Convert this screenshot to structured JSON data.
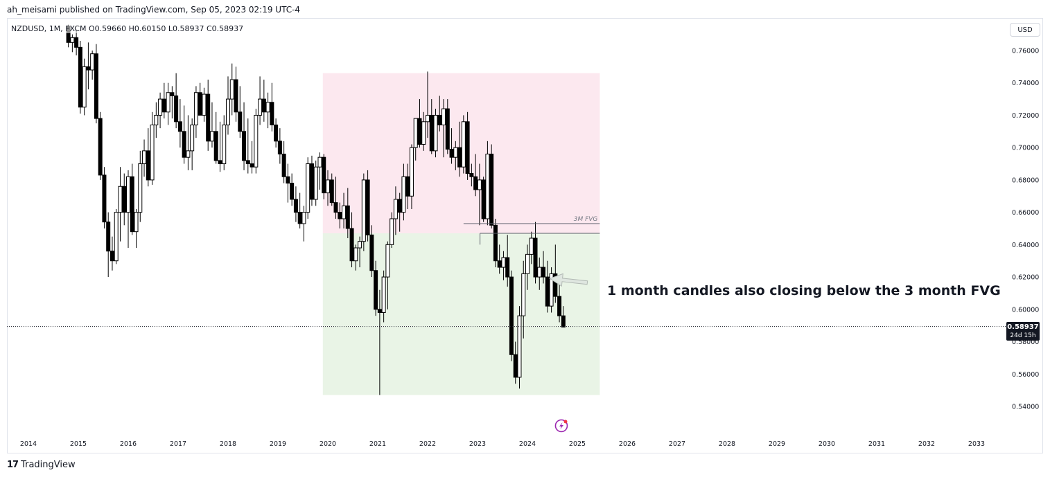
{
  "header": {
    "published_line": "ah_meisami published on TradingView.com, Sep 05, 2023 02:19 UTC-4"
  },
  "legend": {
    "text": "NZDUSD, 1M, FXCM  O0.59660  H0.60150  L0.58937  C0.58937"
  },
  "currency_button": "USD",
  "last_price": {
    "price": "0.58937",
    "countdown": "24d 15h"
  },
  "annotation": {
    "text": "1 month candles also closing below the 3 month FVG"
  },
  "footer": {
    "brand": "TradingView",
    "mark": "17"
  },
  "colors": {
    "bull_body": "#ffffff",
    "bear_body": "#000000",
    "wick": "#000000",
    "premium_zone": "#fce8ef",
    "discount_zone": "#e9f4e6",
    "arrow": "#b2b9b4"
  },
  "chart_data": {
    "type": "candlestick",
    "symbol": "NZDUSD",
    "timeframe": "1M",
    "ylim": [
      0.532,
      0.772
    ],
    "xlim": [
      2013.6,
      2033.9
    ],
    "y_ticks": [
      "0.54000",
      "0.56000",
      "0.58000",
      "0.60000",
      "0.62000",
      "0.64000",
      "0.66000",
      "0.68000",
      "0.70000",
      "0.72000",
      "0.74000",
      "0.76000"
    ],
    "x_ticks": [
      "2014",
      "2015",
      "2016",
      "2017",
      "2018",
      "2019",
      "2020",
      "2021",
      "2022",
      "2023",
      "2024",
      "2025",
      "2026",
      "2027",
      "2028",
      "2029",
      "2030",
      "2031",
      "2032",
      "2033"
    ],
    "candles": [
      {
        "t": 2014.8,
        "o": 0.775,
        "h": 0.776,
        "l": 0.762,
        "c": 0.765
      },
      {
        "t": 2014.88,
        "o": 0.765,
        "h": 0.77,
        "l": 0.759,
        "c": 0.768
      },
      {
        "t": 2014.96,
        "o": 0.768,
        "h": 0.773,
        "l": 0.757,
        "c": 0.762
      },
      {
        "t": 2015.04,
        "o": 0.762,
        "h": 0.766,
        "l": 0.721,
        "c": 0.725
      },
      {
        "t": 2015.12,
        "o": 0.725,
        "h": 0.755,
        "l": 0.72,
        "c": 0.75
      },
      {
        "t": 2015.2,
        "o": 0.75,
        "h": 0.765,
        "l": 0.736,
        "c": 0.748
      },
      {
        "t": 2015.28,
        "o": 0.748,
        "h": 0.76,
        "l": 0.742,
        "c": 0.758
      },
      {
        "t": 2015.36,
        "o": 0.758,
        "h": 0.764,
        "l": 0.715,
        "c": 0.718
      },
      {
        "t": 2015.44,
        "o": 0.718,
        "h": 0.722,
        "l": 0.68,
        "c": 0.683
      },
      {
        "t": 2015.52,
        "o": 0.683,
        "h": 0.688,
        "l": 0.65,
        "c": 0.654
      },
      {
        "t": 2015.6,
        "o": 0.654,
        "h": 0.66,
        "l": 0.62,
        "c": 0.636
      },
      {
        "t": 2015.68,
        "o": 0.636,
        "h": 0.645,
        "l": 0.624,
        "c": 0.63
      },
      {
        "t": 2015.76,
        "o": 0.63,
        "h": 0.662,
        "l": 0.628,
        "c": 0.66
      },
      {
        "t": 2015.84,
        "o": 0.66,
        "h": 0.688,
        "l": 0.642,
        "c": 0.676
      },
      {
        "t": 2015.92,
        "o": 0.676,
        "h": 0.684,
        "l": 0.652,
        "c": 0.66
      },
      {
        "t": 2016.0,
        "o": 0.66,
        "h": 0.686,
        "l": 0.638,
        "c": 0.682
      },
      {
        "t": 2016.08,
        "o": 0.682,
        "h": 0.69,
        "l": 0.646,
        "c": 0.648
      },
      {
        "t": 2016.16,
        "o": 0.648,
        "h": 0.662,
        "l": 0.638,
        "c": 0.66
      },
      {
        "t": 2016.24,
        "o": 0.66,
        "h": 0.698,
        "l": 0.654,
        "c": 0.69
      },
      {
        "t": 2016.32,
        "o": 0.69,
        "h": 0.705,
        "l": 0.682,
        "c": 0.698
      },
      {
        "t": 2016.4,
        "o": 0.698,
        "h": 0.712,
        "l": 0.676,
        "c": 0.68
      },
      {
        "t": 2016.48,
        "o": 0.68,
        "h": 0.722,
        "l": 0.677,
        "c": 0.714
      },
      {
        "t": 2016.56,
        "o": 0.714,
        "h": 0.728,
        "l": 0.706,
        "c": 0.72
      },
      {
        "t": 2016.64,
        "o": 0.72,
        "h": 0.734,
        "l": 0.712,
        "c": 0.73
      },
      {
        "t": 2016.72,
        "o": 0.73,
        "h": 0.74,
        "l": 0.718,
        "c": 0.722
      },
      {
        "t": 2016.8,
        "o": 0.722,
        "h": 0.74,
        "l": 0.714,
        "c": 0.734
      },
      {
        "t": 2016.88,
        "o": 0.734,
        "h": 0.738,
        "l": 0.718,
        "c": 0.732
      },
      {
        "t": 2016.96,
        "o": 0.732,
        "h": 0.746,
        "l": 0.712,
        "c": 0.716
      },
      {
        "t": 2017.04,
        "o": 0.716,
        "h": 0.73,
        "l": 0.7,
        "c": 0.71
      },
      {
        "t": 2017.12,
        "o": 0.71,
        "h": 0.726,
        "l": 0.69,
        "c": 0.694
      },
      {
        "t": 2017.2,
        "o": 0.694,
        "h": 0.72,
        "l": 0.686,
        "c": 0.698
      },
      {
        "t": 2017.28,
        "o": 0.698,
        "h": 0.718,
        "l": 0.686,
        "c": 0.714
      },
      {
        "t": 2017.36,
        "o": 0.714,
        "h": 0.738,
        "l": 0.706,
        "c": 0.734
      },
      {
        "t": 2017.44,
        "o": 0.734,
        "h": 0.74,
        "l": 0.72,
        "c": 0.72
      },
      {
        "t": 2017.52,
        "o": 0.72,
        "h": 0.737,
        "l": 0.716,
        "c": 0.733
      },
      {
        "t": 2017.6,
        "o": 0.733,
        "h": 0.742,
        "l": 0.698,
        "c": 0.704
      },
      {
        "t": 2017.68,
        "o": 0.704,
        "h": 0.728,
        "l": 0.7,
        "c": 0.71
      },
      {
        "t": 2017.76,
        "o": 0.71,
        "h": 0.722,
        "l": 0.69,
        "c": 0.692
      },
      {
        "t": 2017.84,
        "o": 0.692,
        "h": 0.716,
        "l": 0.685,
        "c": 0.69
      },
      {
        "t": 2017.92,
        "o": 0.69,
        "h": 0.72,
        "l": 0.686,
        "c": 0.714
      },
      {
        "t": 2018.0,
        "o": 0.714,
        "h": 0.744,
        "l": 0.708,
        "c": 0.73
      },
      {
        "t": 2018.08,
        "o": 0.73,
        "h": 0.752,
        "l": 0.72,
        "c": 0.742
      },
      {
        "t": 2018.16,
        "o": 0.742,
        "h": 0.75,
        "l": 0.716,
        "c": 0.722
      },
      {
        "t": 2018.24,
        "o": 0.722,
        "h": 0.738,
        "l": 0.706,
        "c": 0.71
      },
      {
        "t": 2018.32,
        "o": 0.71,
        "h": 0.728,
        "l": 0.686,
        "c": 0.692
      },
      {
        "t": 2018.4,
        "o": 0.692,
        "h": 0.718,
        "l": 0.684,
        "c": 0.69
      },
      {
        "t": 2018.48,
        "o": 0.69,
        "h": 0.704,
        "l": 0.684,
        "c": 0.688
      },
      {
        "t": 2018.56,
        "o": 0.688,
        "h": 0.724,
        "l": 0.684,
        "c": 0.72
      },
      {
        "t": 2018.64,
        "o": 0.72,
        "h": 0.744,
        "l": 0.714,
        "c": 0.73
      },
      {
        "t": 2018.72,
        "o": 0.73,
        "h": 0.742,
        "l": 0.716,
        "c": 0.722
      },
      {
        "t": 2018.8,
        "o": 0.722,
        "h": 0.734,
        "l": 0.712,
        "c": 0.728
      },
      {
        "t": 2018.88,
        "o": 0.728,
        "h": 0.74,
        "l": 0.71,
        "c": 0.714
      },
      {
        "t": 2018.96,
        "o": 0.714,
        "h": 0.718,
        "l": 0.7,
        "c": 0.704
      },
      {
        "t": 2019.04,
        "o": 0.704,
        "h": 0.712,
        "l": 0.69,
        "c": 0.696
      },
      {
        "t": 2019.12,
        "o": 0.696,
        "h": 0.704,
        "l": 0.678,
        "c": 0.682
      },
      {
        "t": 2019.2,
        "o": 0.682,
        "h": 0.69,
        "l": 0.666,
        "c": 0.678
      },
      {
        "t": 2019.28,
        "o": 0.678,
        "h": 0.684,
        "l": 0.664,
        "c": 0.668
      },
      {
        "t": 2019.36,
        "o": 0.668,
        "h": 0.676,
        "l": 0.654,
        "c": 0.66
      },
      {
        "t": 2019.44,
        "o": 0.66,
        "h": 0.672,
        "l": 0.65,
        "c": 0.653
      },
      {
        "t": 2019.52,
        "o": 0.653,
        "h": 0.664,
        "l": 0.642,
        "c": 0.66
      },
      {
        "t": 2019.6,
        "o": 0.66,
        "h": 0.694,
        "l": 0.656,
        "c": 0.69
      },
      {
        "t": 2019.68,
        "o": 0.69,
        "h": 0.695,
        "l": 0.664,
        "c": 0.668
      },
      {
        "t": 2019.76,
        "o": 0.668,
        "h": 0.692,
        "l": 0.664,
        "c": 0.688
      },
      {
        "t": 2019.84,
        "o": 0.688,
        "h": 0.697,
        "l": 0.674,
        "c": 0.694
      },
      {
        "t": 2019.92,
        "o": 0.694,
        "h": 0.696,
        "l": 0.668,
        "c": 0.672
      },
      {
        "t": 2020.0,
        "o": 0.672,
        "h": 0.686,
        "l": 0.664,
        "c": 0.68
      },
      {
        "t": 2020.08,
        "o": 0.68,
        "h": 0.684,
        "l": 0.664,
        "c": 0.666
      },
      {
        "t": 2020.16,
        "o": 0.666,
        "h": 0.682,
        "l": 0.656,
        "c": 0.66
      },
      {
        "t": 2020.24,
        "o": 0.66,
        "h": 0.666,
        "l": 0.65,
        "c": 0.656
      },
      {
        "t": 2020.32,
        "o": 0.656,
        "h": 0.672,
        "l": 0.65,
        "c": 0.664
      },
      {
        "t": 2020.4,
        "o": 0.664,
        "h": 0.675,
        "l": 0.644,
        "c": 0.65
      },
      {
        "t": 2020.48,
        "o": 0.65,
        "h": 0.66,
        "l": 0.626,
        "c": 0.63
      },
      {
        "t": 2020.56,
        "o": 0.63,
        "h": 0.64,
        "l": 0.624,
        "c": 0.638
      },
      {
        "t": 2020.64,
        "o": 0.638,
        "h": 0.645,
        "l": 0.626,
        "c": 0.642
      },
      {
        "t": 2020.72,
        "o": 0.642,
        "h": 0.684,
        "l": 0.636,
        "c": 0.68
      },
      {
        "t": 2020.8,
        "o": 0.68,
        "h": 0.686,
        "l": 0.642,
        "c": 0.646
      },
      {
        "t": 2020.88,
        "o": 0.646,
        "h": 0.652,
        "l": 0.62,
        "c": 0.624
      },
      {
        "t": 2020.96,
        "o": 0.624,
        "h": 0.63,
        "l": 0.596,
        "c": 0.6
      },
      {
        "t": 2021.04,
        "o": 0.6,
        "h": 0.612,
        "l": 0.547,
        "c": 0.598
      },
      {
        "t": 2021.12,
        "o": 0.598,
        "h": 0.624,
        "l": 0.592,
        "c": 0.62
      },
      {
        "t": 2021.2,
        "o": 0.62,
        "h": 0.642,
        "l": 0.6,
        "c": 0.64
      },
      {
        "t": 2021.28,
        "o": 0.64,
        "h": 0.66,
        "l": 0.638,
        "c": 0.656
      },
      {
        "t": 2021.36,
        "o": 0.656,
        "h": 0.676,
        "l": 0.646,
        "c": 0.668
      },
      {
        "t": 2021.44,
        "o": 0.668,
        "h": 0.672,
        "l": 0.648,
        "c": 0.66
      },
      {
        "t": 2021.52,
        "o": 0.66,
        "h": 0.69,
        "l": 0.655,
        "c": 0.682
      },
      {
        "t": 2021.6,
        "o": 0.682,
        "h": 0.69,
        "l": 0.662,
        "c": 0.67
      },
      {
        "t": 2021.68,
        "o": 0.67,
        "h": 0.702,
        "l": 0.662,
        "c": 0.7
      },
      {
        "t": 2021.76,
        "o": 0.7,
        "h": 0.718,
        "l": 0.692,
        "c": 0.718
      },
      {
        "t": 2021.84,
        "o": 0.718,
        "h": 0.73,
        "l": 0.7,
        "c": 0.702
      },
      {
        "t": 2021.92,
        "o": 0.702,
        "h": 0.722,
        "l": 0.698,
        "c": 0.716
      },
      {
        "t": 2022.0,
        "o": 0.716,
        "h": 0.747,
        "l": 0.706,
        "c": 0.72
      },
      {
        "t": 2022.08,
        "o": 0.72,
        "h": 0.73,
        "l": 0.696,
        "c": 0.698
      },
      {
        "t": 2022.16,
        "o": 0.698,
        "h": 0.724,
        "l": 0.694,
        "c": 0.72
      },
      {
        "t": 2022.24,
        "o": 0.72,
        "h": 0.732,
        "l": 0.71,
        "c": 0.714
      },
      {
        "t": 2022.32,
        "o": 0.714,
        "h": 0.73,
        "l": 0.694,
        "c": 0.724
      },
      {
        "t": 2022.4,
        "o": 0.724,
        "h": 0.73,
        "l": 0.696,
        "c": 0.699
      },
      {
        "t": 2022.48,
        "o": 0.699,
        "h": 0.712,
        "l": 0.69,
        "c": 0.694
      },
      {
        "t": 2022.56,
        "o": 0.694,
        "h": 0.704,
        "l": 0.686,
        "c": 0.7
      },
      {
        "t": 2022.64,
        "o": 0.7,
        "h": 0.716,
        "l": 0.682,
        "c": 0.688
      },
      {
        "t": 2022.72,
        "o": 0.688,
        "h": 0.72,
        "l": 0.684,
        "c": 0.716
      },
      {
        "t": 2022.8,
        "o": 0.716,
        "h": 0.722,
        "l": 0.68,
        "c": 0.684
      },
      {
        "t": 2022.88,
        "o": 0.684,
        "h": 0.69,
        "l": 0.676,
        "c": 0.682
      },
      {
        "t": 2022.96,
        "o": 0.682,
        "h": 0.696,
        "l": 0.67,
        "c": 0.674
      },
      {
        "t": 2023.04,
        "o": 0.674,
        "h": 0.69,
        "l": 0.652,
        "c": 0.68
      },
      {
        "t": 2023.12,
        "o": 0.68,
        "h": 0.682,
        "l": 0.654,
        "c": 0.656
      },
      {
        "t": 2023.2,
        "o": 0.656,
        "h": 0.704,
        "l": 0.652,
        "c": 0.696
      },
      {
        "t": 2023.28,
        "o": 0.696,
        "h": 0.702,
        "l": 0.65,
        "c": 0.652
      },
      {
        "t": 2023.36,
        "o": 0.652,
        "h": 0.656,
        "l": 0.626,
        "c": 0.63
      },
      {
        "t": 2023.44,
        "o": 0.63,
        "h": 0.64,
        "l": 0.622,
        "c": 0.626
      },
      {
        "t": 2023.52,
        "o": 0.626,
        "h": 0.636,
        "l": 0.618,
        "c": 0.632
      },
      {
        "t": 2023.6,
        "o": 0.632,
        "h": 0.646,
        "l": 0.614,
        "c": 0.62
      },
      {
        "t": 2023.68,
        "o": 0.62,
        "h": 0.624,
        "l": 0.568,
        "c": 0.572
      },
      {
        "t": 2023.76,
        "o": 0.572,
        "h": 0.58,
        "l": 0.554,
        "c": 0.558
      },
      {
        "t": 2023.84,
        "o": 0.558,
        "h": 0.602,
        "l": 0.551,
        "c": 0.596
      },
      {
        "t": 2023.92,
        "o": 0.596,
        "h": 0.63,
        "l": 0.582,
        "c": 0.622
      },
      {
        "t": 2024.0,
        "o": 0.622,
        "h": 0.64,
        "l": 0.612,
        "c": 0.634
      },
      {
        "t": 2024.08,
        "o": 0.634,
        "h": 0.648,
        "l": 0.628,
        "c": 0.644
      },
      {
        "t": 2024.16,
        "o": 0.644,
        "h": 0.654,
        "l": 0.616,
        "c": 0.62
      },
      {
        "t": 2024.24,
        "o": 0.62,
        "h": 0.632,
        "l": 0.612,
        "c": 0.626
      },
      {
        "t": 2024.32,
        "o": 0.626,
        "h": 0.636,
        "l": 0.616,
        "c": 0.62
      },
      {
        "t": 2024.4,
        "o": 0.62,
        "h": 0.63,
        "l": 0.598,
        "c": 0.602
      },
      {
        "t": 2024.48,
        "o": 0.602,
        "h": 0.626,
        "l": 0.598,
        "c": 0.622
      },
      {
        "t": 2024.56,
        "o": 0.622,
        "h": 0.64,
        "l": 0.604,
        "c": 0.608
      },
      {
        "t": 2024.64,
        "o": 0.608,
        "h": 0.616,
        "l": 0.592,
        "c": 0.596
      },
      {
        "t": 2024.72,
        "o": 0.596,
        "h": 0.602,
        "l": 0.589,
        "c": 0.589
      }
    ],
    "zones": [
      {
        "name": "premium",
        "t0": 2019.9,
        "t1": 2025.45,
        "y0": 0.647,
        "y1": 0.746
      },
      {
        "name": "discount",
        "t0": 2019.9,
        "t1": 2025.45,
        "y0": 0.547,
        "y1": 0.647
      }
    ],
    "fvg": {
      "label": "3M FVG",
      "t_top_start": 2022.72,
      "t_bot_start": 2023.05,
      "t_end": 2025.45,
      "top": 0.653,
      "bottom": 0.647
    },
    "current_price": 0.58937,
    "arrow": {
      "t_from": 2025.2,
      "y_from": 0.6165,
      "t_to": 2024.45,
      "y_to": 0.619
    }
  }
}
